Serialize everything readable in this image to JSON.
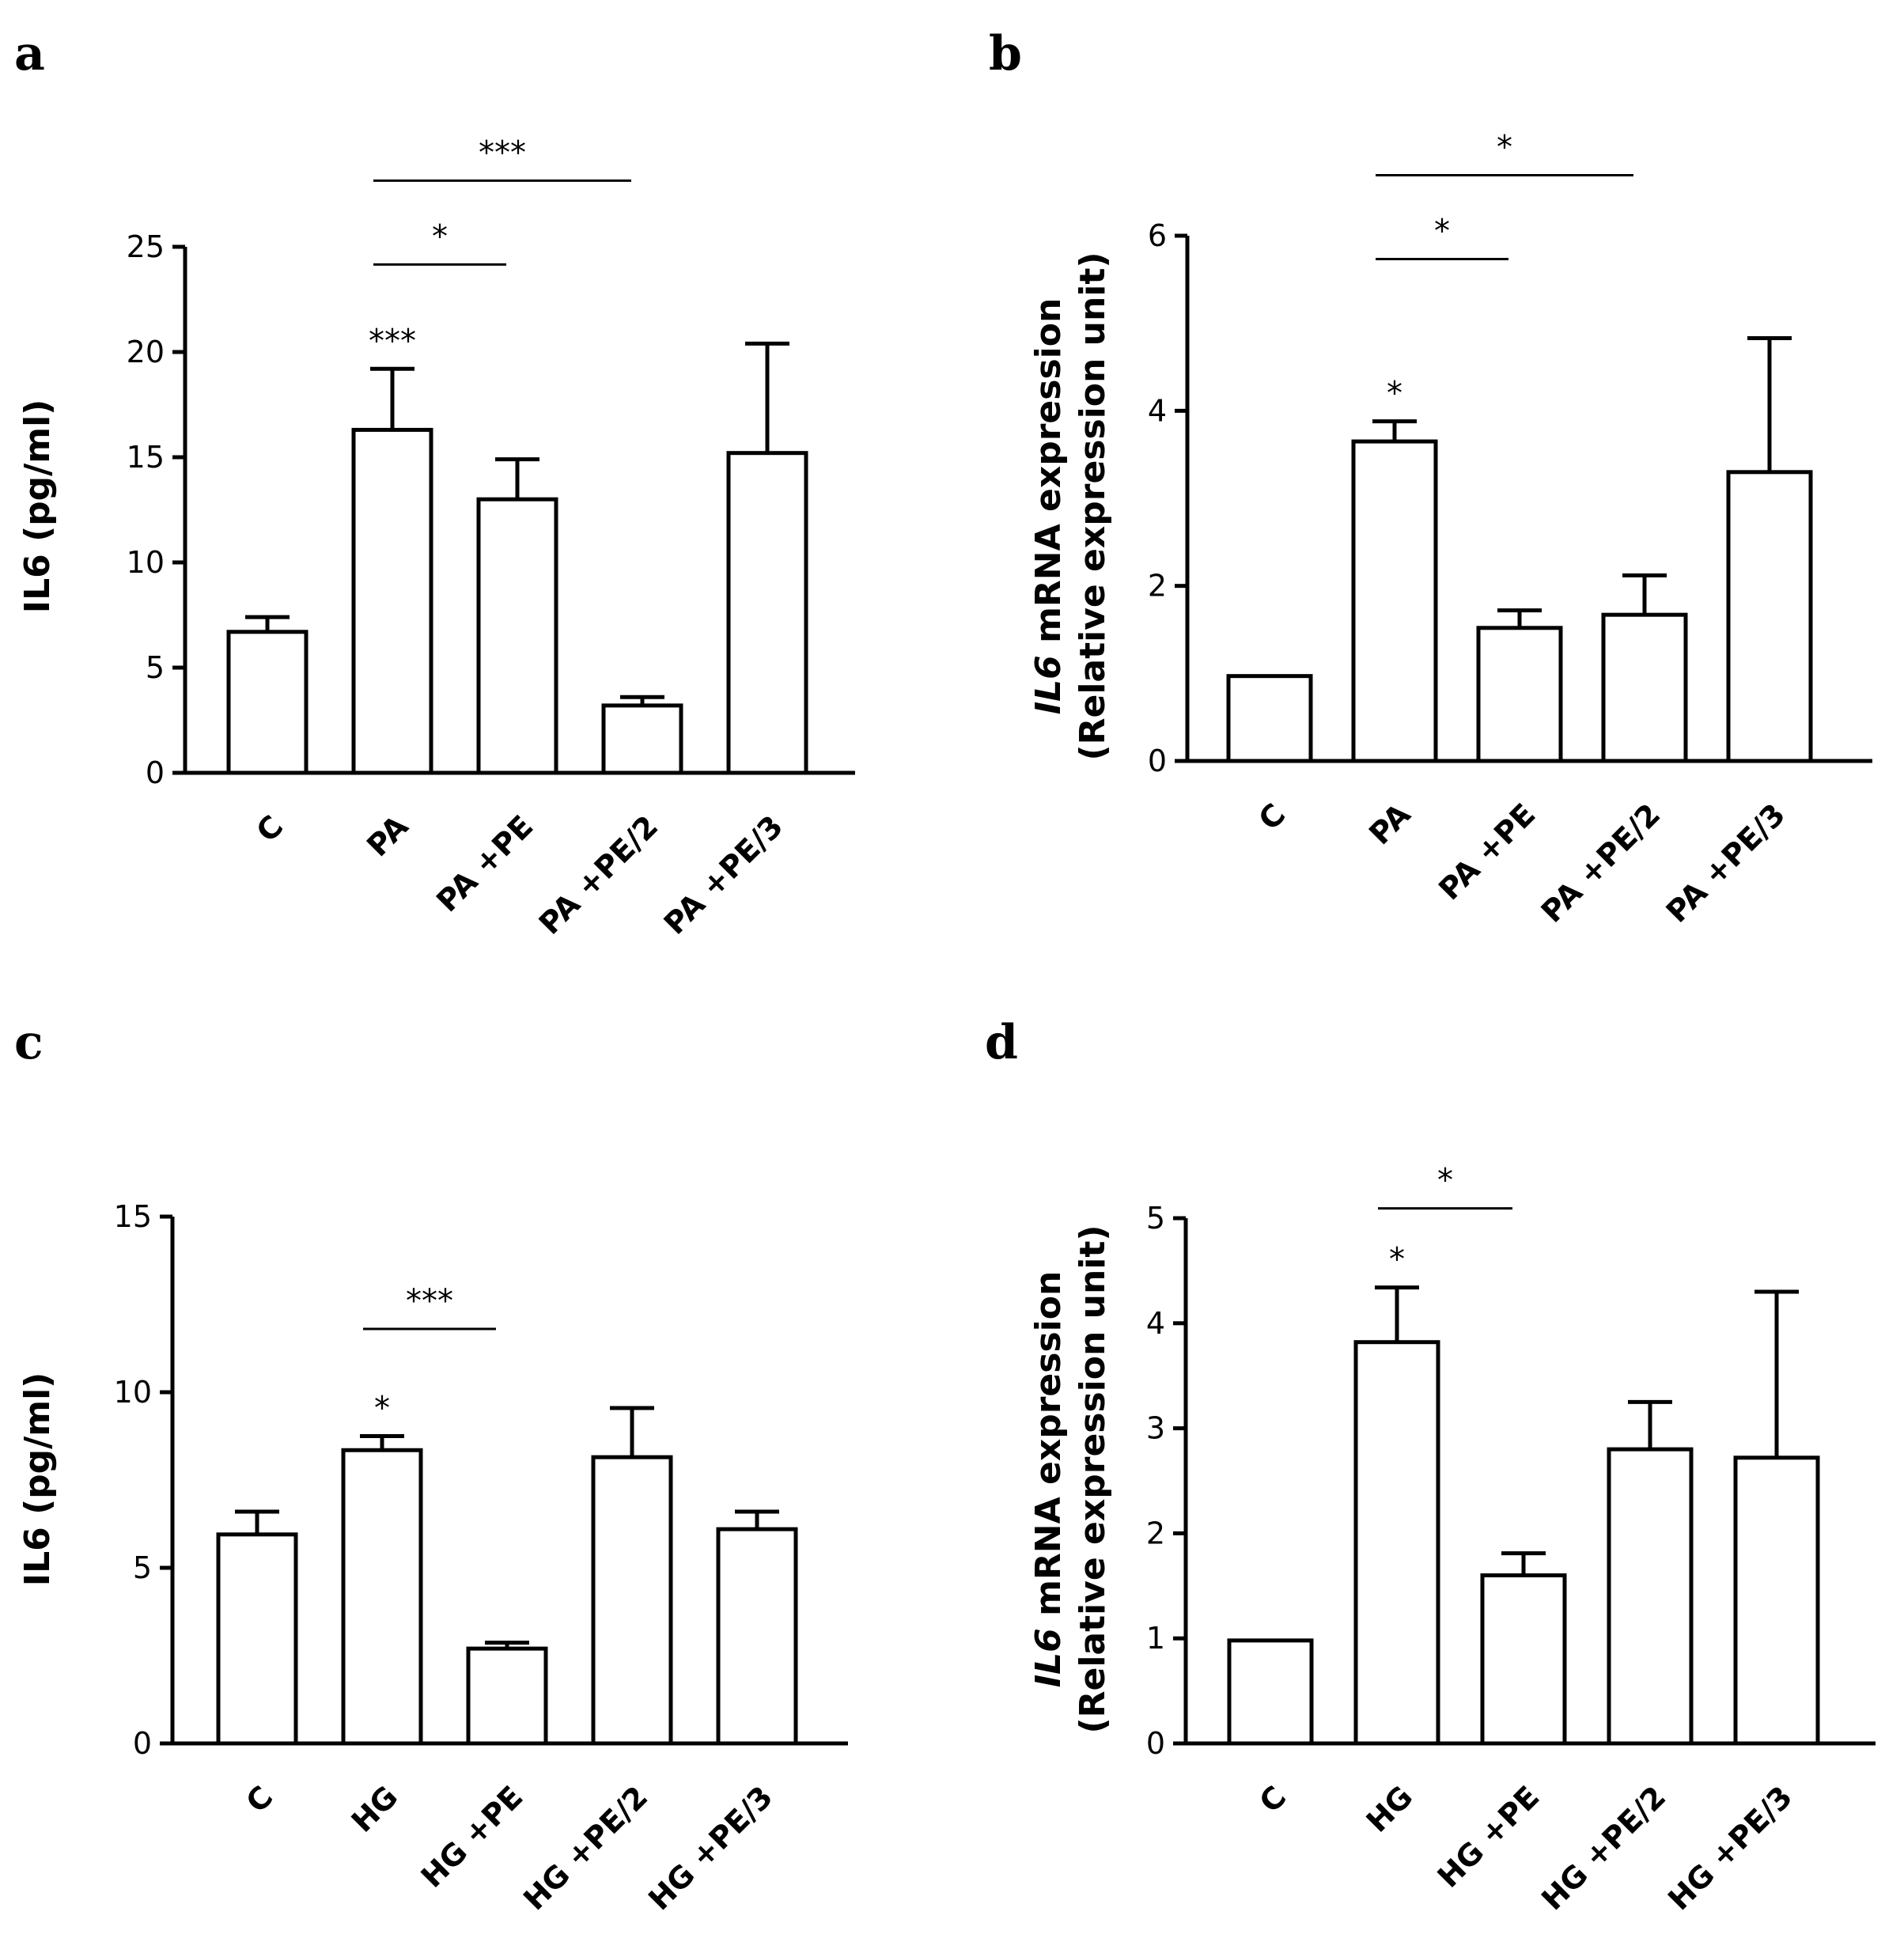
{
  "chart_data": [
    {
      "panel": "a",
      "type": "bar",
      "ylabel_main": "IL6",
      "ylabel_unit": "(pg/ml)",
      "ylabel_italic": false,
      "ylabel_second": "",
      "categories": [
        "C",
        "PA",
        "PA +PE",
        "PA +PE/2",
        "PA +PE/3"
      ],
      "values": [
        6.7,
        16.3,
        13.0,
        3.2,
        15.2
      ],
      "errors": [
        0.7,
        2.9,
        1.9,
        0.4,
        5.2
      ],
      "ylim": [
        0,
        25
      ],
      "yticks": [
        "0",
        "5",
        "10",
        "15",
        "20",
        "25"
      ],
      "bar_annotations": [
        {
          "index": 1,
          "text": "***"
        }
      ],
      "comparisons": [
        {
          "from": 1,
          "to": 2,
          "text": "*"
        },
        {
          "from": 1,
          "to": 3,
          "text": "***"
        }
      ]
    },
    {
      "panel": "b",
      "type": "bar",
      "ylabel_main": "IL6",
      "ylabel_unit": "mRNA expression",
      "ylabel_italic": true,
      "ylabel_second": "(Relative expression unit)",
      "categories": [
        "C",
        "PA",
        "PA +PE",
        "PA +PE/2",
        "PA +PE/3"
      ],
      "values": [
        0.97,
        3.65,
        1.52,
        1.67,
        3.3
      ],
      "errors": [
        0.0,
        0.23,
        0.2,
        0.45,
        1.53
      ],
      "ylim": [
        0,
        6
      ],
      "yticks": [
        "0",
        "2",
        "4",
        "6"
      ],
      "bar_annotations": [
        {
          "index": 1,
          "text": "*"
        }
      ],
      "comparisons": [
        {
          "from": 1,
          "to": 2,
          "text": "*"
        },
        {
          "from": 1,
          "to": 3,
          "text": "*"
        }
      ]
    },
    {
      "panel": "c",
      "type": "bar",
      "ylabel_main": "IL6",
      "ylabel_unit": "(pg/ml)",
      "ylabel_italic": false,
      "ylabel_second": "",
      "categories": [
        "C",
        "HG",
        "HG +PE",
        "HG +PE/2",
        "HG +PE/3"
      ],
      "values": [
        5.95,
        8.35,
        2.7,
        8.15,
        6.1
      ],
      "errors": [
        0.65,
        0.4,
        0.17,
        1.4,
        0.5
      ],
      "ylim": [
        0,
        15
      ],
      "yticks": [
        "0",
        "5",
        "10",
        "15"
      ],
      "bar_annotations": [
        {
          "index": 1,
          "text": "*"
        }
      ],
      "comparisons": [
        {
          "from": 1,
          "to": 2,
          "text": "***"
        }
      ]
    },
    {
      "panel": "d",
      "type": "bar",
      "ylabel_main": "IL6",
      "ylabel_unit": "mRNA expression",
      "ylabel_italic": true,
      "ylabel_second": "(Relative expression unit)",
      "categories": [
        "C",
        "HG",
        "HG +PE",
        "HG +PE/2",
        "HG +PE/3"
      ],
      "values": [
        0.98,
        3.82,
        1.6,
        2.8,
        2.72
      ],
      "errors": [
        0.0,
        0.52,
        0.21,
        0.45,
        1.58
      ],
      "ylim": [
        0,
        5
      ],
      "yticks": [
        "0",
        "1",
        "2",
        "3",
        "4",
        "5"
      ],
      "bar_annotations": [
        {
          "index": 1,
          "text": "*"
        }
      ],
      "comparisons": [
        {
          "from": 1,
          "to": 2,
          "text": "*"
        }
      ]
    }
  ]
}
